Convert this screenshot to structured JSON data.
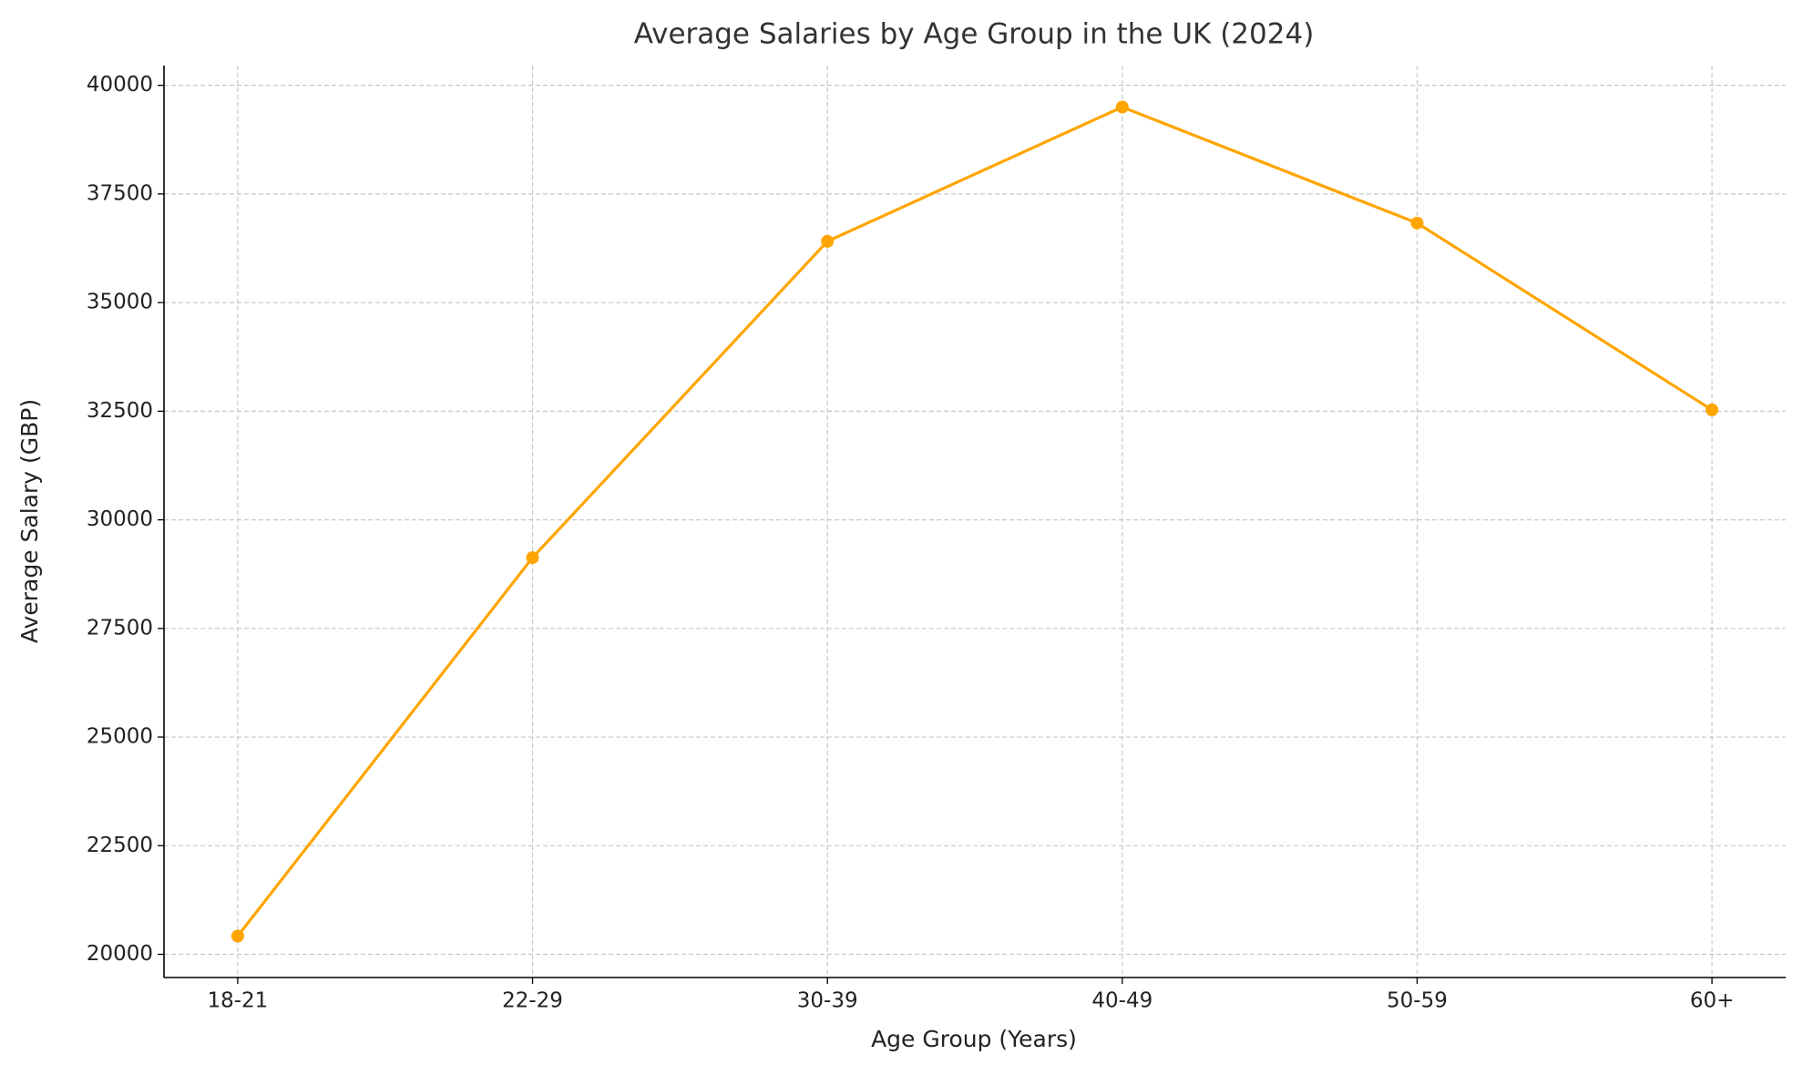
{
  "chart_data": {
    "type": "line",
    "title": "Average Salaries by Age Group in the UK (2024)",
    "x_label": "Age Group (Years)",
    "y_label": "Average Salary (GBP)",
    "categories": [
      "18-21",
      "22-29",
      "30-39",
      "40-49",
      "50-59",
      "60+"
    ],
    "series": [
      {
        "color": "#ffa500",
        "values": [
          20420,
          29130,
          36410,
          39500,
          36830,
          32530
        ]
      }
    ],
    "ylim": [
      19466,
      40454
    ],
    "yticks": [
      20000,
      22500,
      25000,
      27500,
      30000,
      32500,
      35000,
      37500,
      40000
    ],
    "grid": true
  }
}
